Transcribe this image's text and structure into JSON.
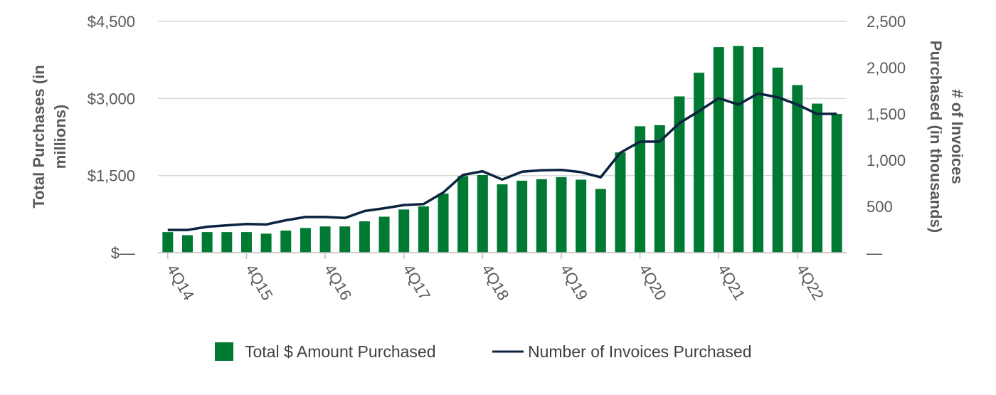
{
  "chart_data": {
    "type": "bar",
    "combo": "bar-line-dual-axis",
    "title": "",
    "ylabel_left": "Total Purchases (in millions)",
    "ylabel_right": "# of Invoices Purchased (in thousands)",
    "ylim_left": [
      0,
      4500
    ],
    "ylim_right": [
      0,
      2500
    ],
    "yticks_left": [
      "$—",
      "$1,500",
      "$3,000",
      "$4,500"
    ],
    "yticks_left_values": [
      0,
      1500,
      3000,
      4500
    ],
    "yticks_right": [
      "—",
      "500",
      "1,000",
      "1,500",
      "2,000",
      "2,500"
    ],
    "yticks_right_values": [
      0,
      500,
      1000,
      1500,
      2000,
      2500
    ],
    "grid": true,
    "legend_position": "bottom",
    "x_labels": [
      "4Q14",
      "4Q15",
      "4Q16",
      "4Q17",
      "4Q18",
      "4Q19",
      "4Q20",
      "4Q21",
      "4Q22"
    ],
    "x_label_quarter_indices": [
      0,
      4,
      8,
      12,
      16,
      20,
      24,
      28,
      32
    ],
    "series": [
      {
        "name": "Total $ Amount Purchased",
        "kind": "bar",
        "axis": "left",
        "color": "#007a33",
        "values": [
          400,
          340,
          400,
          400,
          400,
          370,
          430,
          480,
          510,
          510,
          610,
          700,
          840,
          900,
          1150,
          1490,
          1510,
          1330,
          1400,
          1430,
          1470,
          1420,
          1240,
          1950,
          2460,
          2480,
          3040,
          3500,
          4000,
          4020,
          4000,
          3600,
          3260,
          2900,
          2700
        ]
      },
      {
        "name": "Number of Invoices Purchased",
        "kind": "line",
        "axis": "right",
        "color": "#0c2340",
        "values": [
          245,
          245,
          280,
          295,
          310,
          305,
          350,
          385,
          385,
          375,
          450,
          480,
          515,
          525,
          650,
          840,
          880,
          790,
          875,
          890,
          895,
          870,
          815,
          1080,
          1200,
          1200,
          1400,
          1530,
          1670,
          1600,
          1720,
          1680,
          1600,
          1500,
          1500
        ]
      }
    ]
  }
}
